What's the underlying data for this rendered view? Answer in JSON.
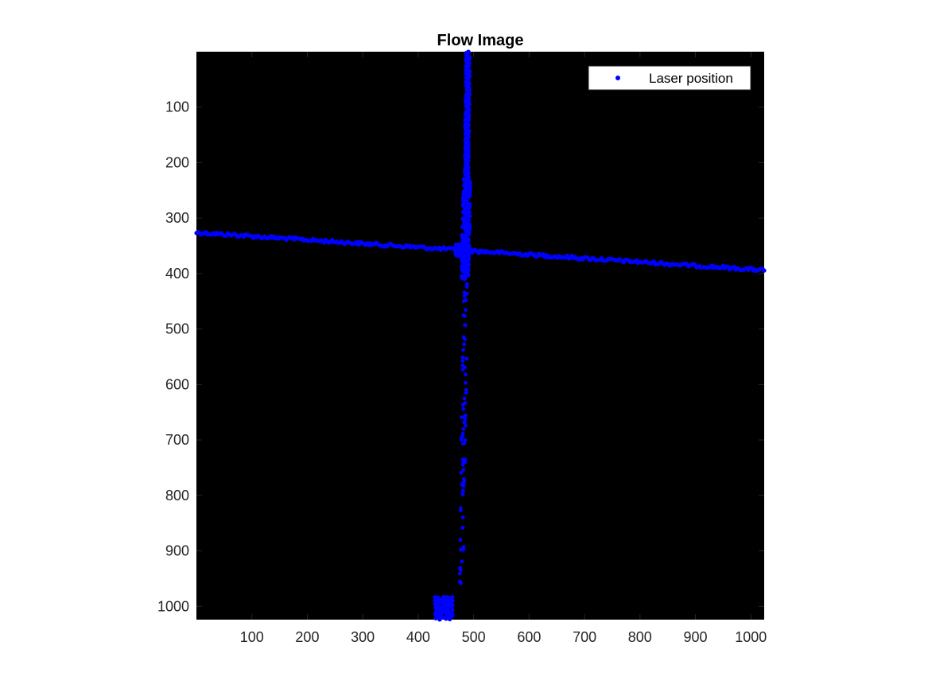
{
  "figure": {
    "title": "Flow Image"
  },
  "chart_data": {
    "type": "scatter",
    "title": "Flow Image",
    "xlabel": "",
    "ylabel": "",
    "xlim": [
      0,
      1024
    ],
    "ylim": [
      0,
      1024
    ],
    "y_reversed": true,
    "background": "#000000",
    "grid": false,
    "legend": {
      "placement": "top-right",
      "entries": [
        "Laser position"
      ]
    },
    "x_ticks": [
      100,
      200,
      300,
      400,
      500,
      600,
      700,
      800,
      900,
      1000
    ],
    "y_ticks": [
      100,
      200,
      300,
      400,
      500,
      600,
      700,
      800,
      900,
      1000
    ],
    "series": [
      {
        "name": "Laser position",
        "color": "#0000ff",
        "marker": "dot",
        "horizontal_line": {
          "x": [
            0,
            1024
          ],
          "y": [
            326,
            394
          ]
        },
        "vertical_band": {
          "x_top": 490,
          "x_bottom": 478,
          "y": [
            0,
            980
          ]
        },
        "vertical_dense_range": [
          0,
          410
        ],
        "intersection": [
          480,
          358
        ],
        "bottom_cluster": {
          "x": [
            430,
            462
          ],
          "y": [
            983,
            1024
          ]
        }
      }
    ]
  }
}
